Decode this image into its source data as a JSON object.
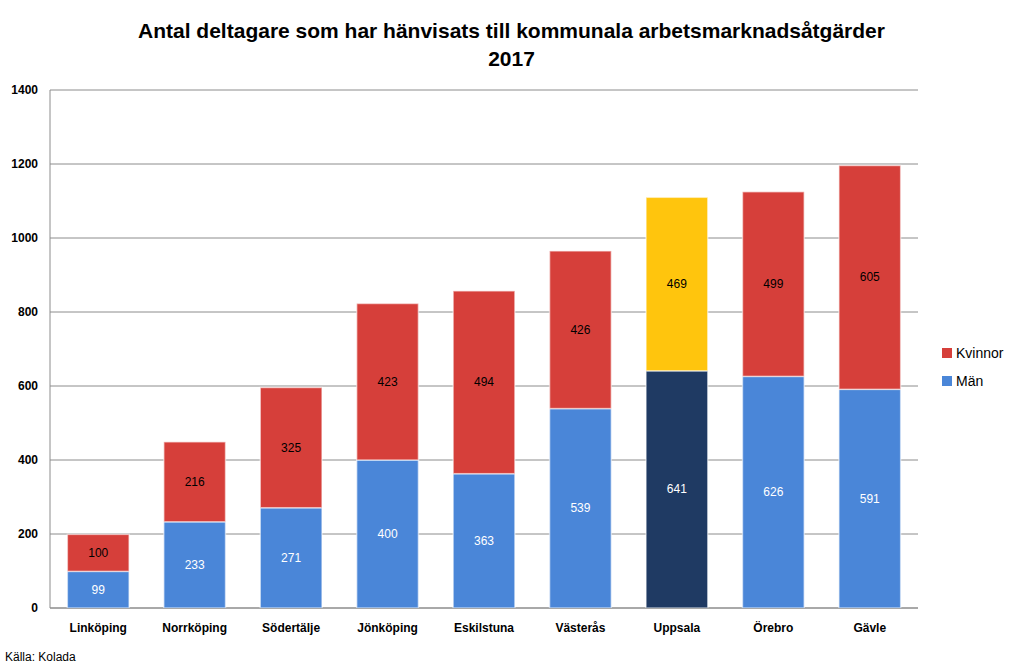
{
  "chart_data": {
    "type": "bar",
    "title": "Antal deltagare som har hänvisats till kommunala arbetsmarknadsåtgärder 2017",
    "annotations": [
      "Källa: Kolada"
    ],
    "categories": [
      "Linköping",
      "Norrköping",
      "Södertälje",
      "Jönköping",
      "Eskilstuna",
      "Västerås",
      "Uppsala",
      "Örebro",
      "Gävle"
    ],
    "series": [
      {
        "name": "Män",
        "color": "#4a86d8",
        "colors": [
          "#4a86d8",
          "#4a86d8",
          "#4a86d8",
          "#4a86d8",
          "#4a86d8",
          "#4a86d8",
          "#1f3a63",
          "#4a86d8",
          "#4a86d8"
        ],
        "values": [
          99,
          233,
          271,
          400,
          363,
          539,
          641,
          626,
          591
        ]
      },
      {
        "name": "Kvinnor",
        "color": "#d63f3a",
        "colors": [
          "#d63f3a",
          "#d63f3a",
          "#d63f3a",
          "#d63f3a",
          "#d63f3a",
          "#d63f3a",
          "#ffc50d",
          "#d63f3a",
          "#d63f3a"
        ],
        "values": [
          100,
          216,
          325,
          423,
          494,
          426,
          469,
          499,
          605
        ]
      }
    ],
    "ylim": [
      0,
      1400
    ],
    "yticks": [
      0,
      200,
      400,
      600,
      800,
      1000,
      1200,
      1400
    ],
    "grid": true,
    "stacked": true,
    "data_labels": true,
    "legend": "right"
  }
}
